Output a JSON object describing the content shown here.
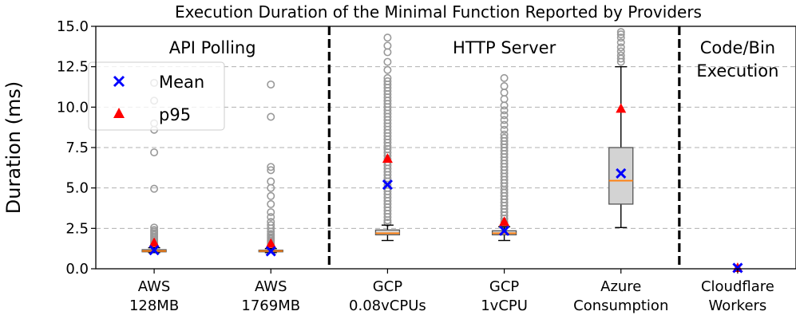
{
  "chart_data": {
    "type": "box",
    "title": "Execution Duration of the Minimal Function Reported by Providers",
    "xlabel": "",
    "ylabel": "Duration (ms)",
    "ylim": [
      0,
      15
    ],
    "yticks": [
      "0.0",
      "2.5",
      "5.0",
      "7.5",
      "10.0",
      "12.5",
      "15.0"
    ],
    "grid": "horizontal dashed",
    "legend": {
      "placement": "top-left",
      "entries": [
        {
          "label": "Mean",
          "marker": "x",
          "color": "#0000ff"
        },
        {
          "label": "p95",
          "marker": "triangle",
          "color": "#ff0000"
        }
      ]
    },
    "groups": [
      {
        "label": "API Polling",
        "first": 0,
        "last": 1
      },
      {
        "label": "HTTP Server",
        "first": 2,
        "last": 4
      },
      {
        "label": "Code/Bin\nExecution",
        "first": 5,
        "last": 5
      }
    ],
    "categories": [
      {
        "label": "AWS\n128MB",
        "box": {
          "whisker_low": 1.0,
          "q1": 1.05,
          "median": 1.1,
          "q3": 1.18,
          "whisker_high": 1.3
        },
        "mean": 1.15,
        "p95": 1.6,
        "outliers": [
          1.4,
          1.5,
          1.6,
          1.7,
          1.8,
          1.9,
          2.0,
          2.1,
          2.2,
          2.3,
          2.4,
          2.55,
          4.95,
          7.2,
          8.6,
          9.0,
          10.4,
          11.5
        ]
      },
      {
        "label": "AWS\n1769MB",
        "box": {
          "whisker_low": 1.0,
          "q1": 1.05,
          "median": 1.1,
          "q3": 1.15,
          "whisker_high": 1.25
        },
        "mean": 1.08,
        "p95": 1.55,
        "outliers": [
          1.35,
          1.45,
          1.55,
          1.65,
          1.75,
          1.85,
          1.95,
          2.05,
          2.15,
          2.3,
          2.5,
          2.7,
          2.9,
          3.2,
          3.5,
          4.0,
          4.5,
          5.0,
          5.4,
          6.1,
          6.3,
          9.4,
          11.4
        ]
      },
      {
        "label": "GCP\n0.08vCPUs",
        "box": {
          "whisker_low": 1.75,
          "q1": 2.1,
          "median": 2.2,
          "q3": 2.4,
          "whisker_high": 2.7
        },
        "mean": 5.2,
        "p95": 6.8,
        "outliers": [
          2.85,
          3.0,
          3.2,
          3.4,
          3.6,
          3.8,
          4.0,
          4.2,
          4.4,
          4.6,
          4.8,
          5.0,
          5.2,
          5.4,
          5.6,
          5.8,
          6.0,
          6.2,
          6.4,
          6.6,
          6.8,
          7.0,
          7.2,
          7.4,
          7.6,
          7.8,
          8.0,
          8.2,
          8.4,
          8.6,
          8.8,
          9.0,
          9.2,
          9.4,
          9.6,
          9.8,
          10.0,
          10.2,
          10.4,
          10.6,
          10.8,
          11.0,
          11.2,
          11.4,
          11.6,
          11.8,
          12.3,
          12.8,
          13.4,
          13.8,
          14.3
        ]
      },
      {
        "label": "GCP\n1vCPU",
        "box": {
          "whisker_low": 1.75,
          "q1": 2.1,
          "median": 2.2,
          "q3": 2.35,
          "whisker_high": 2.6
        },
        "mean": 2.35,
        "p95": 2.9,
        "outliers": [
          2.75,
          2.9,
          3.1,
          3.3,
          3.5,
          3.7,
          3.9,
          4.1,
          4.3,
          4.5,
          4.7,
          4.9,
          5.1,
          5.3,
          5.5,
          5.7,
          5.9,
          6.1,
          6.3,
          6.5,
          6.7,
          6.9,
          7.1,
          7.3,
          7.5,
          7.7,
          7.9,
          8.1,
          8.3,
          8.6,
          8.9,
          9.2,
          9.5,
          9.8,
          10.1,
          10.5,
          10.9,
          11.3,
          11.8
        ]
      },
      {
        "label": "Azure\nConsumption",
        "box": {
          "whisker_low": 2.55,
          "q1": 4.0,
          "median": 5.45,
          "q3": 7.5,
          "whisker_high": 12.5
        },
        "mean": 5.9,
        "p95": 9.9,
        "outliers": [
          12.8,
          13.0,
          13.2,
          13.45,
          13.7,
          14.0,
          14.3,
          14.5,
          14.65
        ]
      },
      {
        "label": "Cloudflare\nWorkers",
        "box": {
          "whisker_low": 0.0,
          "q1": 0.0,
          "median": 0.0,
          "q3": 0.0,
          "whisker_high": 0.0
        },
        "mean": 0.05,
        "p95": 0.05,
        "outliers": []
      }
    ]
  }
}
